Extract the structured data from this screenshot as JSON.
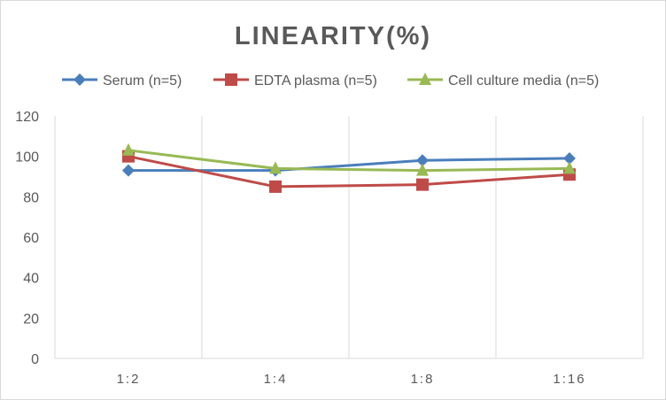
{
  "chart_data": {
    "type": "line",
    "title": "LINEARITY(%)",
    "categories": [
      "1:2",
      "1:4",
      "1:8",
      "1:16"
    ],
    "ylim": [
      0,
      120
    ],
    "yticks": [
      0,
      20,
      40,
      60,
      80,
      100,
      120
    ],
    "grid": "vertical",
    "legend": "top",
    "series": [
      {
        "name": "Serum (n=5)",
        "values": [
          93,
          93,
          98,
          99
        ],
        "color": "#4a7ebb",
        "marker": "diamond"
      },
      {
        "name": "EDTA plasma (n=5)",
        "values": [
          100,
          85,
          86,
          91
        ],
        "color": "#be4b48",
        "marker": "square"
      },
      {
        "name": "Cell culture media (n=5)",
        "values": [
          103,
          94,
          93,
          94
        ],
        "color": "#98b954",
        "marker": "triangle"
      }
    ]
  }
}
